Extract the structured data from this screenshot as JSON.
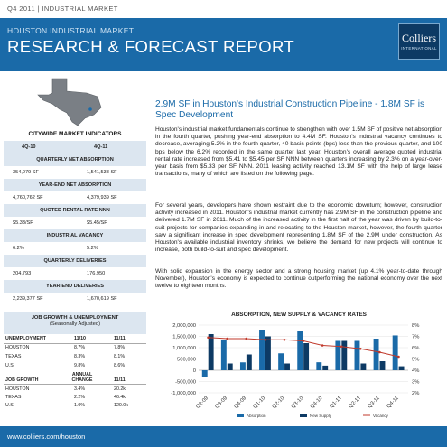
{
  "header": {
    "topline": "Q4 2011 | INDUSTRIAL MARKET",
    "subtitle": "HOUSTON INDUSTRIAL MARKET",
    "title": "RESEARCH & FORECAST REPORT",
    "logo_name": "Colliers",
    "logo_sub": "INTERNATIONAL"
  },
  "indicators": {
    "title": "CITYWIDE MARKET INDICATORS",
    "col1": "4Q-10",
    "col2": "4Q-11",
    "sections": [
      {
        "label": "QUARTERLY NET ABSORPTION",
        "v1": "354,079 SF",
        "v2": "1,541,538 SF"
      },
      {
        "label": "YEAR-END NET ABSORPTION",
        "v1": "4,760,762 SF",
        "v2": "4,379,939 SF"
      },
      {
        "label": "QUOTED RENTAL RATE NNN",
        "v1": "$5.33/SF",
        "v2": "$5.45/SF"
      },
      {
        "label": "INDUSTRIAL VACANCY",
        "v1": "6.2%",
        "v2": "5.2%"
      },
      {
        "label": "QUARTERLY DELIVERIES",
        "v1": "204,793",
        "v2": "176,950"
      },
      {
        "label": "YEAR-END DELIVERIES",
        "v1": "2,239,377 SF",
        "v2": "1,670,619 SF"
      },
      {
        "label": "UNDER CONSTRUCTION",
        "v1": "206,671 SF",
        "v2": "2,942,666 SF"
      }
    ]
  },
  "growth": {
    "title": "JOB GROWTH & UNEMPLOYMENT",
    "subtitle": "(Seasonally Adjusted)",
    "unemp_header": [
      "UNEMPLOYMENT",
      "11/10",
      "11/11"
    ],
    "unemp_rows": [
      [
        "HOUSTON",
        "8.7%",
        "7.8%"
      ],
      [
        "TEXAS",
        "8.3%",
        "8.1%"
      ],
      [
        "U.S.",
        "9.8%",
        "8.6%"
      ]
    ],
    "job_header": [
      "JOB GROWTH",
      "ANNUAL CHANGE",
      "11/11"
    ],
    "job_rows": [
      [
        "HOUSTON",
        "3.4%",
        "20.2k"
      ],
      [
        "TEXAS",
        "2.2%",
        "46.4k"
      ],
      [
        "U.S.",
        "1.0%",
        "120.0k"
      ]
    ]
  },
  "article": {
    "headline": "2.9M SF in Houston's Industrial Construction Pipeline - 1.8M SF is Spec Development",
    "p1": "Houston's industrial market fundamentals continue to strengthen with over 1.5M SF of positive net absorption in the fourth quarter, pushing year-end absorption to 4.4M SF. Houston's industrial vacancy continues to decrease, averaging 5.2% in the fourth quarter, 40 basis points (bps) less than the previous quarter, and 100 bps below the 6.2% recorded in the same quarter last year. Houston's overall average quoted industrial rental rate increased from $5.41 to $5.45 per SF NNN between quarters increasing by 2.3% on a year-over-year basis from $5.33 per SF NNN. 2011 leasing activity reached 13.1M SF with the help of large lease transactions, many of which are listed on the following page.",
    "p2": "For several years, developers have shown restraint due to the economic downturn; however, construction activity increased in 2011. Houston's industrial market currently has 2.9M SF in the construction pipeline and delivered 1.7M SF in 2011. Much of the increased activity in the first half of the year was driven by build-to-suit projects for companies expanding in and relocating to the Houston market, however, the fourth quarter saw a significant increase in spec development representing 1.8M SF of the 2.9M under construction. As Houston's available industrial inventory shrinks, we believe the demand for new projects will continue to increase, both build-to-suit and spec development.",
    "p3": "With solid expansion in the energy sector and a strong housing market (up 4.1% year-to-date through November), Houston's economy is expected to continue outperforming the national economy over the next twelve to eighteen months."
  },
  "chart_data": {
    "type": "bar",
    "title": "ABSORPTION, NEW SUPPLY & VACANCY RATES",
    "categories": [
      "Q2-09",
      "Q3-09",
      "Q4-09",
      "Q1-10",
      "Q2-10",
      "Q3-10",
      "Q4-10",
      "Q1-11",
      "Q2-11",
      "Q3-11",
      "Q4-11"
    ],
    "series": [
      {
        "name": "Absorption",
        "axis": "left",
        "values": [
          -300000,
          1350000,
          350000,
          1800000,
          750000,
          1750000,
          354079,
          1300000,
          1300000,
          1400000,
          1541538
        ]
      },
      {
        "name": "New Supply",
        "axis": "left",
        "values": [
          1600000,
          300000,
          700000,
          1500000,
          300000,
          1200000,
          204793,
          1300000,
          300000,
          400000,
          176950
        ]
      },
      {
        "name": "Vacancy",
        "axis": "right",
        "type": "line",
        "values": [
          6.9,
          6.8,
          6.8,
          6.7,
          6.7,
          6.6,
          6.2,
          6.1,
          5.9,
          5.6,
          5.2
        ]
      }
    ],
    "y_left_ticks": [
      "2,000,000",
      "1,500,000",
      "1,000,000",
      "500,000",
      "0",
      "-500,000",
      "-1,000,000"
    ],
    "y_right_ticks": [
      "8%",
      "7%",
      "6%",
      "5%",
      "4%",
      "3%",
      "2%"
    ],
    "ylim_left": [
      -1000000,
      2000000
    ],
    "ylim_right": [
      2,
      8
    ],
    "legend_position": "bottom",
    "colors": {
      "absorption": "#1a6aa8",
      "supply": "#0d3a64",
      "vacancy": "#c0392b"
    }
  },
  "footer": {
    "url": "www.colliers.com/houston"
  }
}
